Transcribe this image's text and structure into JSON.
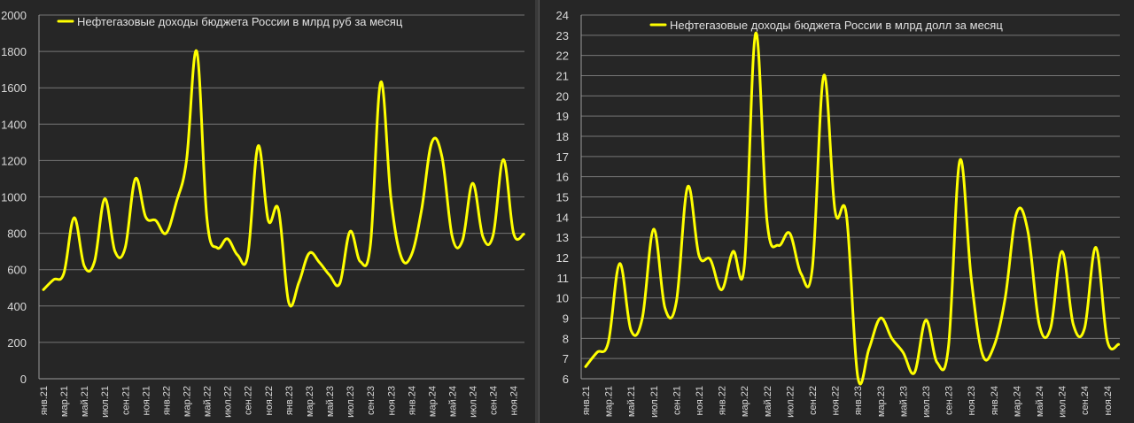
{
  "chart_data": [
    {
      "type": "line",
      "title": "",
      "legend": {
        "label": "Нефтегазовые доходы бюджета России в млрд руб за месяц",
        "position": "top-left"
      },
      "ylim": [
        0,
        2000
      ],
      "yticks": [
        0,
        200,
        400,
        600,
        800,
        1000,
        1200,
        1400,
        1600,
        1800,
        2000
      ],
      "grid": "horizontal",
      "color": "#ffff00",
      "x_labels": [
        "янв.21",
        "мар.21",
        "май.21",
        "июл.21",
        "сен.21",
        "ноя.21",
        "янв.22",
        "мар.22",
        "май.22",
        "июл.22",
        "сен.22",
        "ноя.22",
        "янв.23",
        "мар.23",
        "май.23",
        "июл.23",
        "сен.23",
        "ноя.23",
        "янв.24",
        "мар.24",
        "май.24",
        "июл.24",
        "сен.24",
        "ноя.24"
      ],
      "categories": [
        "янв.21",
        "фев.21",
        "мар.21",
        "апр.21",
        "май.21",
        "июн.21",
        "июл.21",
        "авг.21",
        "сен.21",
        "окт.21",
        "ноя.21",
        "дек.21",
        "янв.22",
        "фев.22",
        "мар.22",
        "апр.22",
        "май.22",
        "июн.22",
        "июл.22",
        "авг.22",
        "сен.22",
        "окт.22",
        "ноя.22",
        "дек.22",
        "янв.23",
        "фев.23",
        "мар.23",
        "апр.23",
        "май.23",
        "июн.23",
        "июл.23",
        "авг.23",
        "сен.23",
        "окт.23",
        "ноя.23",
        "дек.23",
        "янв.24",
        "фев.24",
        "мар.24",
        "апр.24",
        "май.24",
        "июн.24",
        "июл.24",
        "авг.24",
        "сен.24",
        "окт.24",
        "ноя.24",
        "дек.24"
      ],
      "series": [
        {
          "values": [
            490,
            545,
            580,
            885,
            620,
            645,
            990,
            700,
            720,
            1100,
            890,
            870,
            800,
            970,
            1200,
            1800,
            880,
            720,
            770,
            680,
            680,
            1280,
            870,
            930,
            420,
            530,
            690,
            640,
            570,
            525,
            810,
            645,
            740,
            1630,
            990,
            670,
            680,
            930,
            1300,
            1220,
            780,
            760,
            1075,
            780,
            790,
            1205,
            800,
            795
          ]
        }
      ]
    },
    {
      "type": "line",
      "title": "",
      "legend": {
        "label": "Нефтегазовые доходы бюджета России в млрд долл за месяц",
        "position": "top-center"
      },
      "ylim": [
        6,
        24
      ],
      "yticks": [
        6,
        7,
        8,
        9,
        10,
        11,
        12,
        13,
        14,
        15,
        16,
        17,
        18,
        19,
        20,
        21,
        22,
        23,
        24
      ],
      "grid": "horizontal",
      "color": "#ffff00",
      "x_labels": [
        "янв.21",
        "мар.21",
        "май.21",
        "июл.21",
        "сен.21",
        "ноя.21",
        "янв.22",
        "мар.22",
        "май.22",
        "июл.22",
        "сен.22",
        "ноя.22",
        "янв.23",
        "мар.23",
        "май.23",
        "июл.23",
        "сен.23",
        "ноя.23",
        "янв.24",
        "мар.24",
        "май.24",
        "июл.24",
        "сен.24",
        "ноя.24"
      ],
      "categories": [
        "янв.21",
        "фев.21",
        "мар.21",
        "апр.21",
        "май.21",
        "июн.21",
        "июл.21",
        "авг.21",
        "сен.21",
        "окт.21",
        "ноя.21",
        "дек.21",
        "янв.22",
        "фев.22",
        "мар.22",
        "апр.22",
        "май.22",
        "июн.22",
        "июл.22",
        "авг.22",
        "сен.22",
        "окт.22",
        "ноя.22",
        "дек.22",
        "янв.23",
        "фев.23",
        "мар.23",
        "апр.23",
        "май.23",
        "июн.23",
        "июл.23",
        "авг.23",
        "сен.23",
        "окт.23",
        "ноя.23",
        "дек.23",
        "янв.24",
        "фев.24",
        "мар.24",
        "апр.24",
        "май.24",
        "июн.24",
        "июл.24",
        "авг.24",
        "сен.24",
        "окт.24",
        "ноя.24",
        "дек.24"
      ],
      "series": [
        {
          "values": [
            6.6,
            7.3,
            7.8,
            11.7,
            8.4,
            9.0,
            13.4,
            9.5,
            9.8,
            15.5,
            12.1,
            11.9,
            10.4,
            12.3,
            11.6,
            23.1,
            13.8,
            12.6,
            13.2,
            11.2,
            11.5,
            21.0,
            14.3,
            14.1,
            6.1,
            7.5,
            9.0,
            8.0,
            7.3,
            6.3,
            8.9,
            6.8,
            7.6,
            16.8,
            11.0,
            7.2,
            7.6,
            10.0,
            14.2,
            13.3,
            8.7,
            8.5,
            12.3,
            8.7,
            8.5,
            12.5,
            7.9,
            7.7
          ]
        }
      ]
    }
  ]
}
